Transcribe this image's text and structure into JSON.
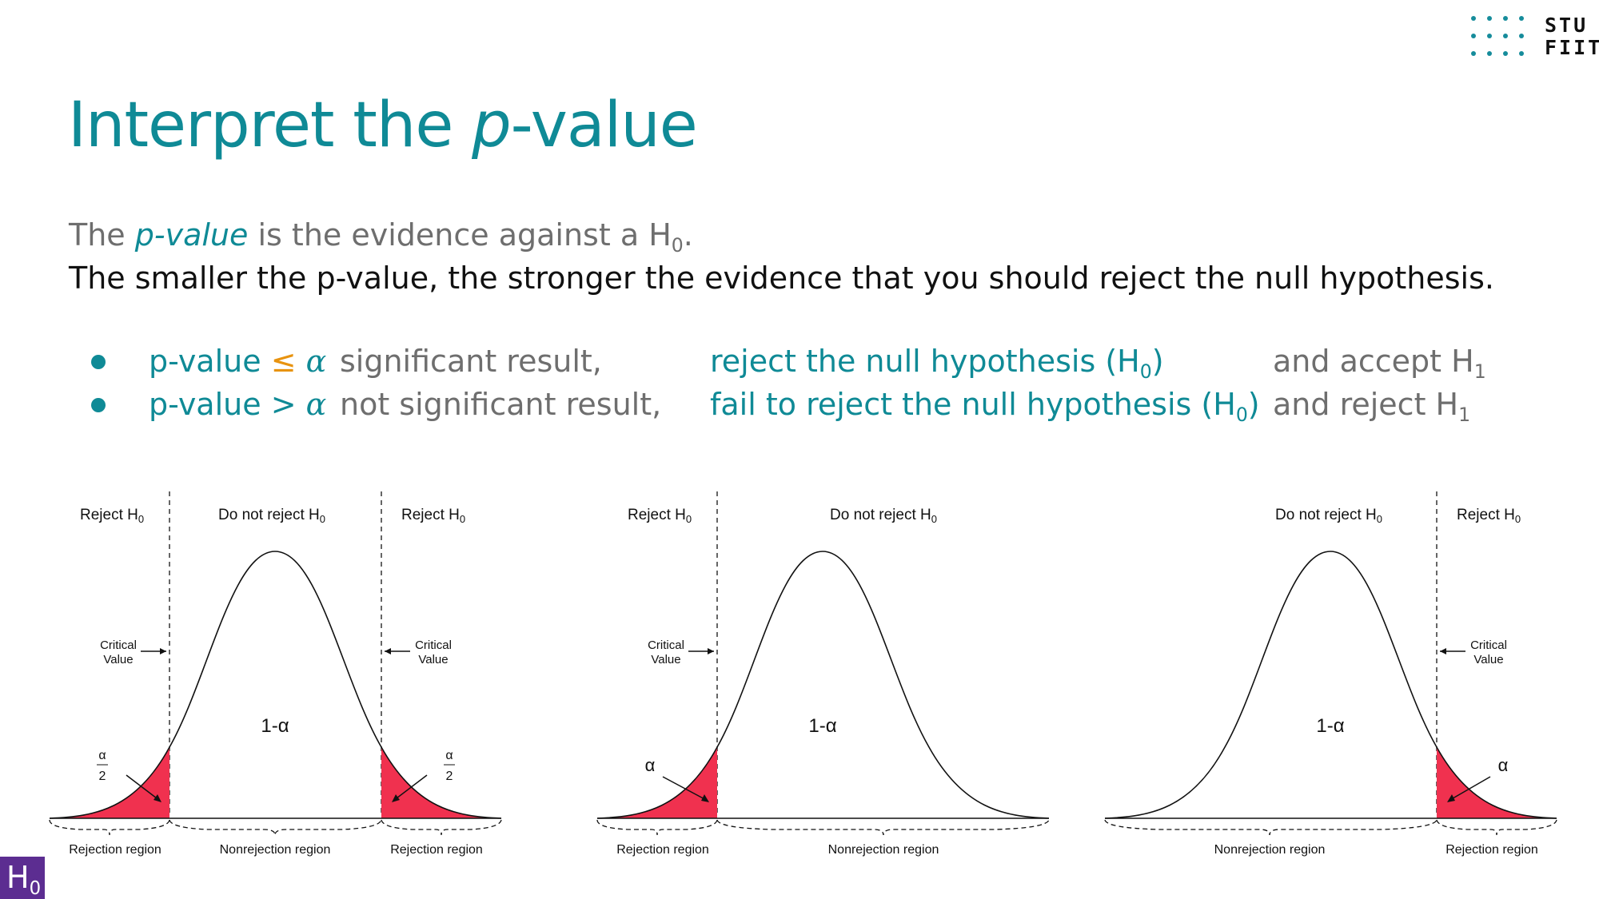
{
  "logo": {
    "line1": "STU",
    "line2": "FIIT",
    "accent": "#168c9b"
  },
  "title": {
    "prefix": "Interpret the ",
    "italic": "p",
    "suffix": "-value"
  },
  "intro": {
    "line1_a": "The ",
    "line1_hl": "p-value",
    "line1_b": " is the evidence against a H",
    "line1_sub": "0",
    "line1_end": ".",
    "line2": "The smaller the p-value, the stronger the evidence that you should reject the null hypothesis."
  },
  "rules": [
    {
      "cond_a": "p-value ",
      "op": "≤",
      "alpha": "α",
      "desc": "significant result,",
      "action": "reject the null hypothesis (H",
      "action_sub": "0",
      "action_end": ")",
      "hyp": "and accept H",
      "hyp_sub": "1"
    },
    {
      "cond_a": "p-value ",
      "op": ">",
      "alpha": "α",
      "desc": "not significant result,",
      "action": "fail to reject the null hypothesis (H",
      "action_sub": "0",
      "action_end": ")",
      "hyp": "and reject H",
      "hyp_sub": "1"
    }
  ],
  "diagrams": {
    "two_tailed": {
      "left_label": "Reject H",
      "mid_label": "Do not reject H",
      "right_label": "Reject H",
      "sub": "0",
      "critical": [
        "Critical",
        "Value"
      ],
      "center": "1-α",
      "tail_top": "α",
      "tail_bottom": "2",
      "regions": [
        "Rejection region",
        "Nonrejection region",
        "Rejection region"
      ]
    },
    "left_tailed": {
      "left_label": "Reject H",
      "mid_label": "Do not reject H",
      "sub": "0",
      "critical": [
        "Critical",
        "Value"
      ],
      "center": "1-α",
      "tail": "α",
      "regions": [
        "Rejection region",
        "Nonrejection region"
      ]
    },
    "right_tailed": {
      "mid_label": "Do not reject H",
      "right_label": "Reject H",
      "sub": "0",
      "critical": [
        "Critical",
        "Value"
      ],
      "center": "1-α",
      "tail": "α",
      "regions": [
        "Nonrejection region",
        "Rejection region"
      ]
    }
  },
  "colors": {
    "accent": "#0f8a96",
    "reject_fill": "#f0314f",
    "badge": "#5c2d91"
  },
  "badge": {
    "text": "H",
    "sub": "0"
  }
}
